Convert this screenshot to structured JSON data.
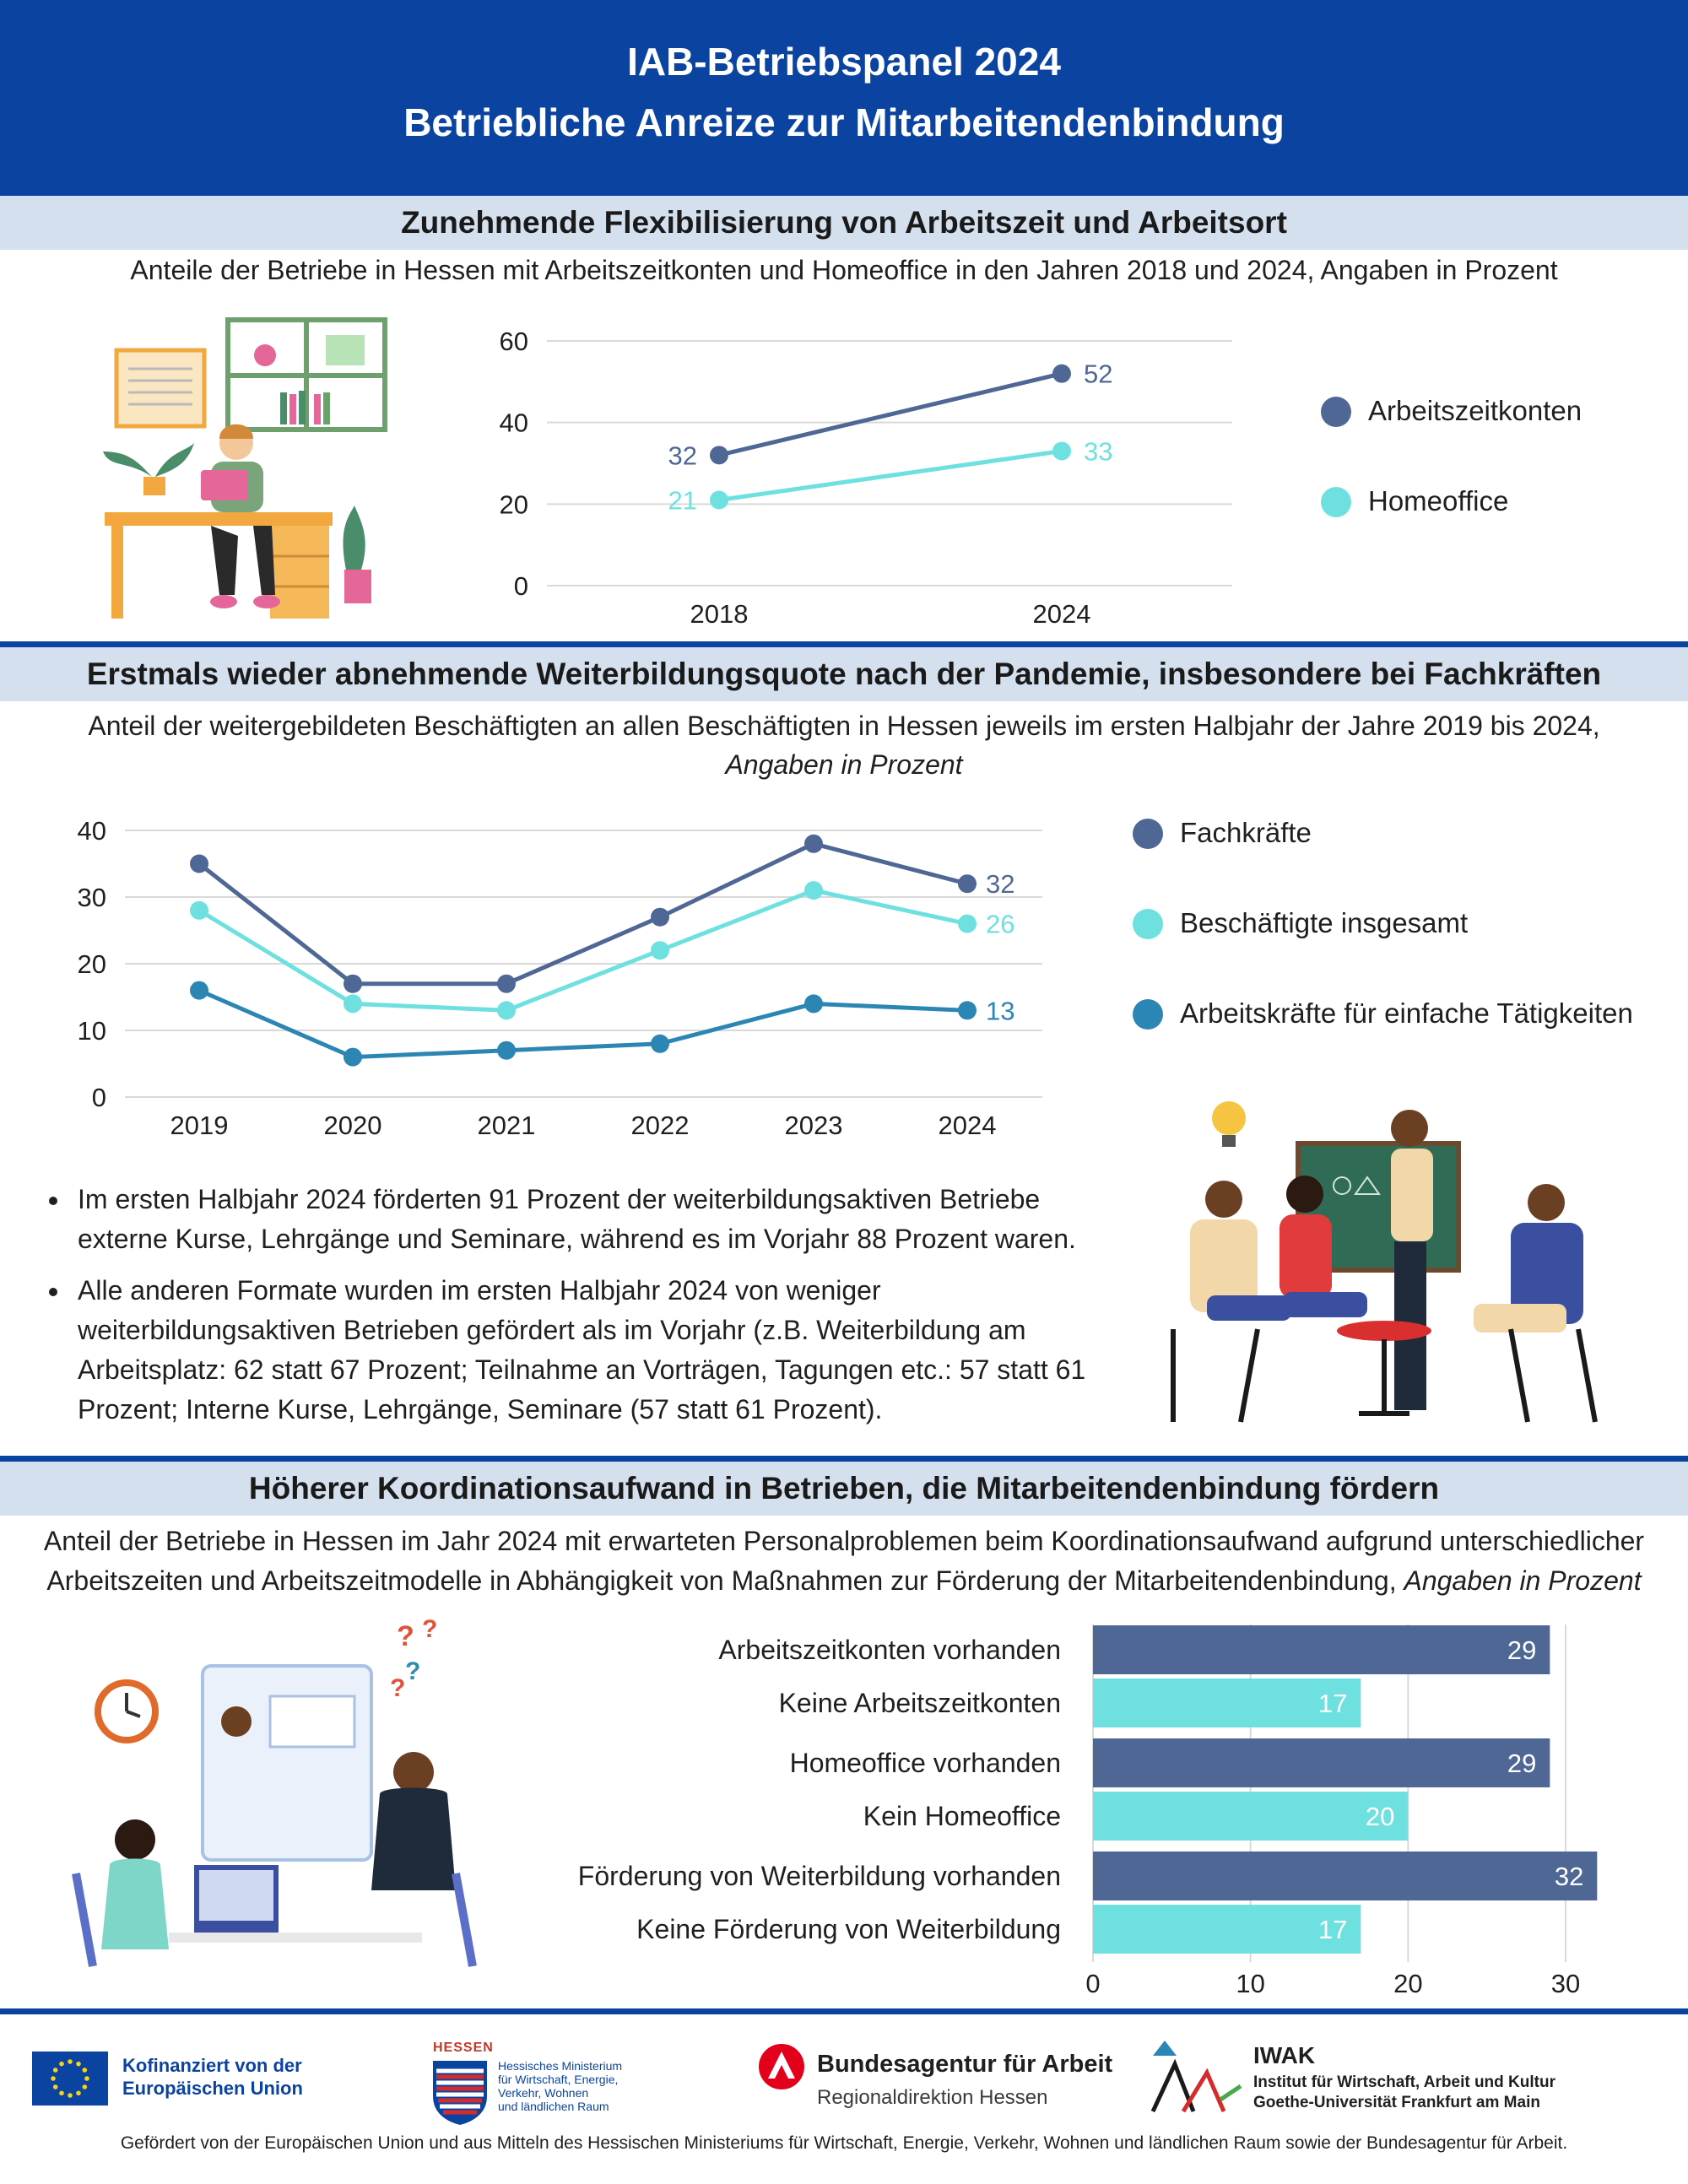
{
  "header": {
    "title": "IAB-Betriebspanel 2024",
    "subtitle": "Betriebliche Anreize zur Mitarbeitendenbindung"
  },
  "section1": {
    "heading": "Zunehmende Flexibilisierung von Arbeitszeit und Arbeitsort",
    "subtitle": "Anteile der Betriebe in Hessen mit Arbeitszeitkonten und Homeoffice in den Jahren 2018 und 2024, Angaben in Prozent"
  },
  "section2": {
    "heading": "Erstmals wieder abnehmende Weiterbildungsquote nach der Pandemie, insbesondere bei Fachkräften",
    "subtitle_line1": "Anteil der weitergebildeten Beschäftigten an allen Beschäftigten in Hessen jeweils im ersten Halbjahr der Jahre 2019 bis 2024,",
    "subtitle_line2": "Angaben in Prozent",
    "bullets": [
      "Im ersten Halbjahr 2024 förderten 91 Prozent der weiterbildungsaktiven Betriebe externe Kurse, Lehrgänge und Seminare, während es im Vorjahr 88 Prozent waren.",
      "Alle anderen Formate wurden im ersten Halbjahr 2024 von weniger weiterbildungsaktiven Betrieben gefördert als im Vorjahr (z.B. Weiterbildung am Arbeitsplatz: 62 statt 67 Prozent; Teilnahme an Vorträgen, Tagungen etc.: 57 statt 61 Prozent; Interne Kurse, Lehrgänge, Seminare (57 statt 61 Prozent)."
    ]
  },
  "section3": {
    "heading": "Höherer Koordinationsaufwand in Betrieben, die Mitarbeitendenbindung fördern",
    "subtitle_line1": "Anteil der Betriebe in Hessen im Jahr 2024 mit erwarteten Personalproblemen beim Koordinationsaufwand aufgrund unterschiedlicher",
    "subtitle_line2": "Arbeitszeiten und Arbeitszeitmodelle in Abhängigkeit von Maßnahmen zur Förderung der Mitarbeitendenbindung,",
    "subtitle_line2_italic": "Angaben in Prozent"
  },
  "chart_data": [
    {
      "type": "line",
      "title": "",
      "x": [
        "2018",
        "2024"
      ],
      "series": [
        {
          "name": "Arbeitszeitkonten",
          "values": [
            32,
            52
          ],
          "color": "#4f6795"
        },
        {
          "name": "Homeoffice",
          "values": [
            21,
            33
          ],
          "color": "#6fe0e0"
        }
      ],
      "ylim": [
        0,
        60
      ],
      "yticks": [
        0,
        20,
        40,
        60
      ],
      "grid": true,
      "legend": "right",
      "data_labels": true
    },
    {
      "type": "line",
      "title": "",
      "x": [
        "2019",
        "2020",
        "2021",
        "2022",
        "2023",
        "2024"
      ],
      "series": [
        {
          "name": "Fachkräfte",
          "values": [
            35,
            17,
            17,
            27,
            38,
            32
          ],
          "color": "#4f6795"
        },
        {
          "name": "Beschäftigte insgesamt",
          "values": [
            28,
            14,
            13,
            22,
            31,
            26
          ],
          "color": "#6fe0e0"
        },
        {
          "name": "Arbeitskräfte für einfache Tätigkeiten",
          "values": [
            16,
            6,
            7,
            8,
            14,
            13
          ],
          "color": "#2c86b4"
        }
      ],
      "ylim": [
        0,
        40
      ],
      "yticks": [
        0,
        10,
        20,
        30,
        40
      ],
      "grid": true,
      "legend": "right",
      "data_labels": "last"
    },
    {
      "type": "bar",
      "orientation": "horizontal",
      "title": "",
      "categories": [
        "Arbeitszeitkonten vorhanden",
        "Keine Arbeitszeitkonten",
        "Homeoffice vorhanden",
        "Kein Homeoffice",
        "Förderung von Weiterbildung vorhanden",
        "Keine Förderung von Weiterbildung"
      ],
      "values": [
        29,
        17,
        29,
        20,
        32,
        17
      ],
      "colors": [
        "#4f6795",
        "#6fe0e0",
        "#4f6795",
        "#6fe0e0",
        "#4f6795",
        "#6fe0e0"
      ],
      "xlim": [
        0,
        30
      ],
      "xticks": [
        0,
        10,
        20,
        30
      ],
      "grid": true
    }
  ],
  "footer": {
    "eu_line1": "Kofinanziert von der",
    "eu_line2": "Europäischen Union",
    "hessen_caption": "HESSEN",
    "hessen_lines": [
      "Hessisches Ministerium",
      "für Wirtschaft, Energie,",
      "Verkehr, Wohnen",
      "und ländlichen Raum"
    ],
    "ba_title": "Bundesagentur für Arbeit",
    "ba_sub": "Regionaldirektion Hessen",
    "iwak_title": "IWAK",
    "iwak_line1": "Institut für Wirtschaft, Arbeit und Kultur",
    "iwak_line2": "Goethe-Universität Frankfurt am Main",
    "note": "Gefördert von der Europäischen Union und aus Mitteln des Hessischen Ministeriums für Wirtschaft, Energie, Verkehr, Wohnen und ländlichen Raum sowie der Bundesagentur für Arbeit."
  }
}
